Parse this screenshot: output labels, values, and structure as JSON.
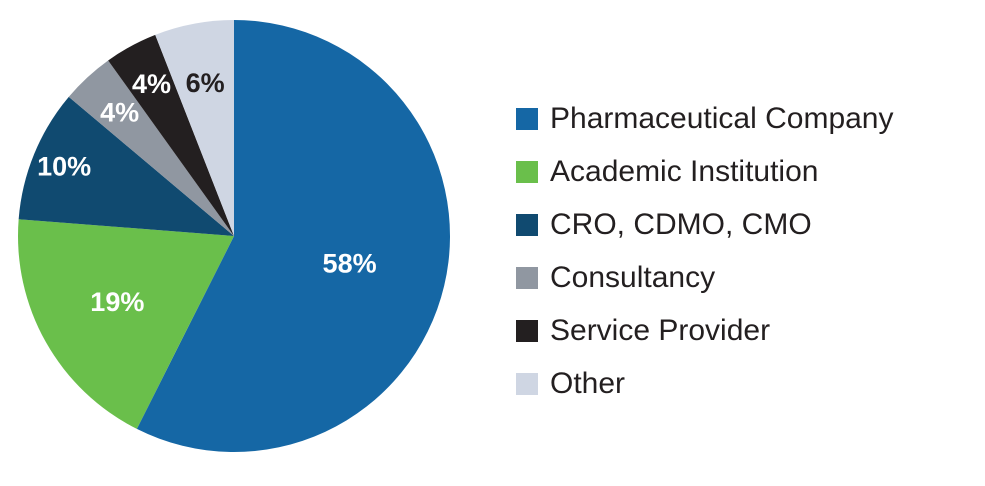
{
  "chart_data": {
    "type": "pie",
    "categories": [
      "Pharmaceutical Company",
      "Academic Institution",
      "CRO, CDMO, CMO",
      "Consultancy",
      "Service Provider",
      "Other"
    ],
    "values": [
      58,
      19,
      10,
      4,
      4,
      6
    ],
    "data_labels": [
      "58%",
      "19%",
      "10%",
      "4%",
      "4%",
      "6%"
    ],
    "colors": [
      "#1567a5",
      "#6abf4b",
      "#104a70",
      "#9097a1",
      "#231f20",
      "#cfd6e3"
    ],
    "label_colors": [
      "#ffffff",
      "#ffffff",
      "#ffffff",
      "#ffffff",
      "#ffffff",
      "#231f20"
    ],
    "start_angle_deg": 0,
    "direction": "clockwise",
    "legend_position": "right"
  }
}
